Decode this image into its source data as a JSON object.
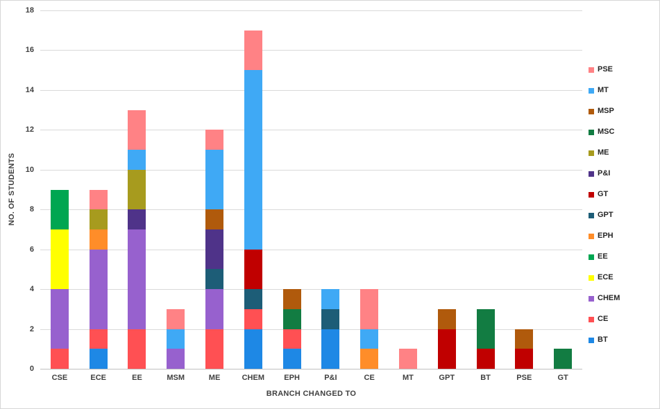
{
  "chart_data": {
    "type": "bar",
    "stacked": true,
    "xlabel": "BRANCH CHANGED TO",
    "ylabel": "NO. OF STUDENTS",
    "ylim": [
      0,
      18
    ],
    "ytick_step": 2,
    "grid": true,
    "legend_position": "right",
    "categories": [
      "CSE",
      "ECE",
      "EE",
      "MSM",
      "ME",
      "CHEM",
      "EPH",
      "P&I",
      "CE",
      "MT",
      "GPT",
      "BT",
      "PSE",
      "GT"
    ],
    "series": [
      {
        "name": "BT",
        "color": "#1E88E5",
        "values": [
          0,
          1,
          0,
          0,
          0,
          2,
          1,
          2,
          0,
          0,
          0,
          0,
          0,
          0
        ]
      },
      {
        "name": "CE",
        "color": "#FF5053",
        "values": [
          1,
          1,
          2,
          0,
          2,
          1,
          1,
          0,
          0,
          0,
          0,
          0,
          0,
          0
        ]
      },
      {
        "name": "CHEM",
        "color": "#9761CE",
        "values": [
          3,
          4,
          5,
          1,
          2,
          0,
          0,
          0,
          0,
          0,
          0,
          0,
          0,
          0
        ]
      },
      {
        "name": "ECE",
        "color": "#FFFF00",
        "values": [
          3,
          0,
          0,
          0,
          0,
          0,
          0,
          0,
          0,
          0,
          0,
          0,
          0,
          0
        ]
      },
      {
        "name": "EE",
        "color": "#00A651",
        "values": [
          2,
          0,
          0,
          0,
          0,
          0,
          0,
          0,
          0,
          0,
          0,
          0,
          0,
          0
        ]
      },
      {
        "name": "EPH",
        "color": "#FF8D29",
        "values": [
          0,
          1,
          0,
          0,
          0,
          0,
          0,
          0,
          1,
          0,
          0,
          0,
          0,
          0
        ]
      },
      {
        "name": "GPT",
        "color": "#1D5D77",
        "values": [
          0,
          0,
          0,
          0,
          1,
          1,
          0,
          1,
          0,
          0,
          0,
          0,
          0,
          0
        ]
      },
      {
        "name": "GT",
        "color": "#C00000",
        "values": [
          0,
          0,
          0,
          0,
          0,
          2,
          0,
          0,
          0,
          0,
          2,
          1,
          1,
          0
        ]
      },
      {
        "name": "P&I",
        "color": "#4F3389",
        "values": [
          0,
          0,
          1,
          0,
          2,
          0,
          0,
          0,
          0,
          0,
          0,
          0,
          0,
          0
        ]
      },
      {
        "name": "ME",
        "color": "#A79B1E",
        "values": [
          0,
          1,
          2,
          0,
          0,
          0,
          0,
          0,
          0,
          0,
          0,
          0,
          0,
          0
        ]
      },
      {
        "name": "MSC",
        "color": "#127C42",
        "values": [
          0,
          0,
          0,
          0,
          0,
          0,
          1,
          0,
          0,
          0,
          0,
          2,
          0,
          1
        ]
      },
      {
        "name": "MSP",
        "color": "#B05A0C",
        "values": [
          0,
          0,
          0,
          0,
          1,
          0,
          1,
          0,
          0,
          0,
          1,
          0,
          1,
          0
        ]
      },
      {
        "name": "MT",
        "color": "#3FA9F5",
        "values": [
          0,
          0,
          1,
          1,
          3,
          9,
          0,
          1,
          1,
          0,
          0,
          0,
          0,
          0
        ]
      },
      {
        "name": "PSE",
        "color": "#FF8285",
        "values": [
          0,
          1,
          2,
          1,
          1,
          2,
          0,
          0,
          2,
          1,
          0,
          0,
          0,
          0
        ]
      }
    ],
    "legend_order": [
      "PSE",
      "MT",
      "MSP",
      "MSC",
      "ME",
      "P&I",
      "GT",
      "GPT",
      "EPH",
      "EE",
      "ECE",
      "CHEM",
      "CE",
      "BT"
    ]
  }
}
